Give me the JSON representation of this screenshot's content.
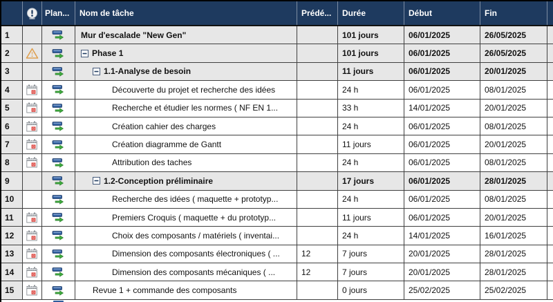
{
  "app": "project-task-table",
  "colors": {
    "header_bg": "#1e3a5f",
    "header_text": "#ffffff",
    "grid_line": "#3f3f3f",
    "summary_row_bg": "#e7e7e7",
    "row_bg": "#ffffff",
    "plan_icon_blue": "#2e5d9e",
    "plan_icon_green": "#3daa3d",
    "calendar_red": "#d83a34",
    "warning_orange": "#dfa050"
  },
  "icons": {
    "indicator_header": "exclamation-circle-icon",
    "auto_scheduled": "auto-scheduled-task-icon",
    "calendar": "calendar-constraint-icon",
    "warning": "warning-triangle-icon",
    "collapse": "collapse-box-icon"
  },
  "header": {
    "columns": [
      {
        "key": "num",
        "label": ""
      },
      {
        "key": "indicator",
        "label": ""
      },
      {
        "key": "plan",
        "label": "Plan..."
      },
      {
        "key": "name",
        "label": "Nom de tâche"
      },
      {
        "key": "pred",
        "label": "Prédé..."
      },
      {
        "key": "duration",
        "label": "Durée"
      },
      {
        "key": "start",
        "label": "Début"
      },
      {
        "key": "finish",
        "label": "Fin"
      }
    ]
  },
  "rows": [
    {
      "num": "1",
      "indicator": "",
      "plan": "auto",
      "collapse": false,
      "level": 0,
      "bold": true,
      "summary": true,
      "name": "Mur d'escalade \"New Gen\"",
      "pred": "",
      "duration": "101 jours",
      "start": "06/01/2025",
      "finish": "26/05/2025"
    },
    {
      "num": "2",
      "indicator": "warning",
      "plan": "auto",
      "collapse": true,
      "level": 1,
      "bold": true,
      "summary": true,
      "name": "Phase 1",
      "pred": "",
      "duration": "101 jours",
      "start": "06/01/2025",
      "finish": "26/05/2025"
    },
    {
      "num": "3",
      "indicator": "",
      "plan": "auto",
      "collapse": true,
      "level": 2,
      "bold": true,
      "summary": true,
      "name": "1.1-Analyse de besoin",
      "pred": "",
      "duration": "11 jours",
      "start": "06/01/2025",
      "finish": "20/01/2025"
    },
    {
      "num": "4",
      "indicator": "calendar",
      "plan": "auto",
      "collapse": false,
      "level": 3,
      "bold": false,
      "summary": false,
      "name": "Découverte du projet et recherche des idées",
      "pred": "",
      "duration": "24 h",
      "start": "06/01/2025",
      "finish": "08/01/2025"
    },
    {
      "num": "5",
      "indicator": "calendar",
      "plan": "auto",
      "collapse": false,
      "level": 3,
      "bold": false,
      "summary": false,
      "name": "Recherche et étudier les normes ( NF EN 1...",
      "pred": "",
      "duration": "33 h",
      "start": "14/01/2025",
      "finish": "20/01/2025"
    },
    {
      "num": "6",
      "indicator": "calendar",
      "plan": "auto",
      "collapse": false,
      "level": 3,
      "bold": false,
      "summary": false,
      "name": "Création cahier des charges",
      "pred": "",
      "duration": "24 h",
      "start": "06/01/2025",
      "finish": "08/01/2025"
    },
    {
      "num": "7",
      "indicator": "calendar",
      "plan": "auto",
      "collapse": false,
      "level": 3,
      "bold": false,
      "summary": false,
      "name": "Création diagramme de Gantt",
      "pred": "",
      "duration": "11 jours",
      "start": "06/01/2025",
      "finish": "20/01/2025"
    },
    {
      "num": "8",
      "indicator": "calendar",
      "plan": "auto",
      "collapse": false,
      "level": 3,
      "bold": false,
      "summary": false,
      "name": "Attribution des taches",
      "pred": "",
      "duration": "24 h",
      "start": "06/01/2025",
      "finish": "08/01/2025"
    },
    {
      "num": "9",
      "indicator": "",
      "plan": "auto",
      "collapse": true,
      "level": 2,
      "bold": true,
      "summary": true,
      "name": "1.2-Conception préliminaire",
      "pred": "",
      "duration": "17 jours",
      "start": "06/01/2025",
      "finish": "28/01/2025"
    },
    {
      "num": "10",
      "indicator": "",
      "plan": "auto",
      "collapse": false,
      "level": 3,
      "bold": false,
      "summary": false,
      "name": "Recherche des idées ( maquette + prototyp...",
      "pred": "",
      "duration": "24 h",
      "start": "06/01/2025",
      "finish": "08/01/2025"
    },
    {
      "num": "11",
      "indicator": "calendar",
      "plan": "auto",
      "collapse": false,
      "level": 3,
      "bold": false,
      "summary": false,
      "name": "Premiers Croquis ( maquette + du prototyp...",
      "pred": "",
      "duration": "11 jours",
      "start": "06/01/2025",
      "finish": "20/01/2025"
    },
    {
      "num": "12",
      "indicator": "calendar",
      "plan": "auto",
      "collapse": false,
      "level": 3,
      "bold": false,
      "summary": false,
      "name": "Choix des composants / matériels ( inventai...",
      "pred": "",
      "duration": "24 h",
      "start": "14/01/2025",
      "finish": "16/01/2025"
    },
    {
      "num": "13",
      "indicator": "calendar",
      "plan": "auto",
      "collapse": false,
      "level": 3,
      "bold": false,
      "summary": false,
      "name": "Dimension des composants électroniques ( ...",
      "pred": "12",
      "duration": "7 jours",
      "start": "20/01/2025",
      "finish": "28/01/2025"
    },
    {
      "num": "14",
      "indicator": "calendar",
      "plan": "auto",
      "collapse": false,
      "level": 3,
      "bold": false,
      "summary": false,
      "name": "Dimension des composants mécaniques ( ...",
      "pred": "12",
      "duration": "7 jours",
      "start": "20/01/2025",
      "finish": "28/01/2025"
    },
    {
      "num": "15",
      "indicator": "calendar",
      "plan": "auto",
      "collapse": false,
      "level": 2,
      "bold": false,
      "summary": false,
      "name": "Revue 1 + commande des composants",
      "pred": "",
      "duration": "0 jours",
      "start": "25/02/2025",
      "finish": "25/02/2025"
    }
  ]
}
